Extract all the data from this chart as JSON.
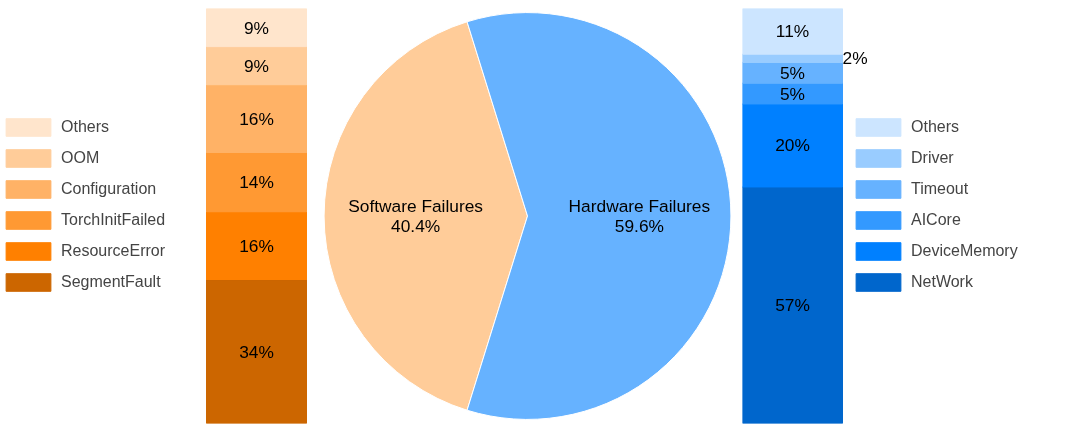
{
  "chart_data": [
    {
      "type": "bar",
      "stacked": true,
      "categories": [
        null
      ],
      "legend": "left",
      "series": [
        {
          "name": "SegmentFault",
          "color": "#cc6600",
          "values": [
            34
          ],
          "value_labels": [
            "34%"
          ]
        },
        {
          "name": "ResourceError",
          "color": "#ff8000",
          "values": [
            16
          ],
          "value_labels": [
            "16%"
          ]
        },
        {
          "name": "TorchInitFailed",
          "color": "#ff9933",
          "values": [
            14
          ],
          "value_labels": [
            "14%"
          ]
        },
        {
          "name": "Configuration",
          "color": "#ffb266",
          "values": [
            16
          ],
          "value_labels": [
            "16%"
          ]
        },
        {
          "name": "OOM",
          "color": "#ffcc99",
          "values": [
            9
          ],
          "value_labels": [
            "9%"
          ]
        },
        {
          "name": "Others",
          "color": "#ffe5cc",
          "values": [
            9
          ],
          "value_labels": [
            "9%"
          ]
        }
      ]
    },
    {
      "type": "pie",
      "categories": [
        "Software Failures",
        "Hardware Failures"
      ],
      "values": [
        40.4,
        59.6
      ],
      "colors": [
        "#ffcc99",
        "#66b2ff"
      ],
      "value_labels": [
        "40.4%",
        "59.6%"
      ]
    },
    {
      "type": "bar",
      "stacked": true,
      "categories": [
        null
      ],
      "legend": "right",
      "series": [
        {
          "name": "NetWork",
          "color": "#0066cc",
          "values": [
            57
          ],
          "value_labels": [
            "57%"
          ]
        },
        {
          "name": "DeviceMemory",
          "color": "#0080ff",
          "values": [
            20
          ],
          "value_labels": [
            "20%"
          ]
        },
        {
          "name": "AICore",
          "color": "#3399ff",
          "values": [
            5
          ],
          "value_labels": [
            "5%"
          ]
        },
        {
          "name": "Timeout",
          "color": "#66b2ff",
          "values": [
            5
          ],
          "value_labels": [
            "5%"
          ]
        },
        {
          "name": "Driver",
          "color": "#99ccff",
          "values": [
            2
          ],
          "value_labels": [
            "2%"
          ]
        },
        {
          "name": "Others",
          "color": "#cce5ff",
          "values": [
            11
          ],
          "value_labels": [
            "11%"
          ]
        }
      ]
    }
  ]
}
